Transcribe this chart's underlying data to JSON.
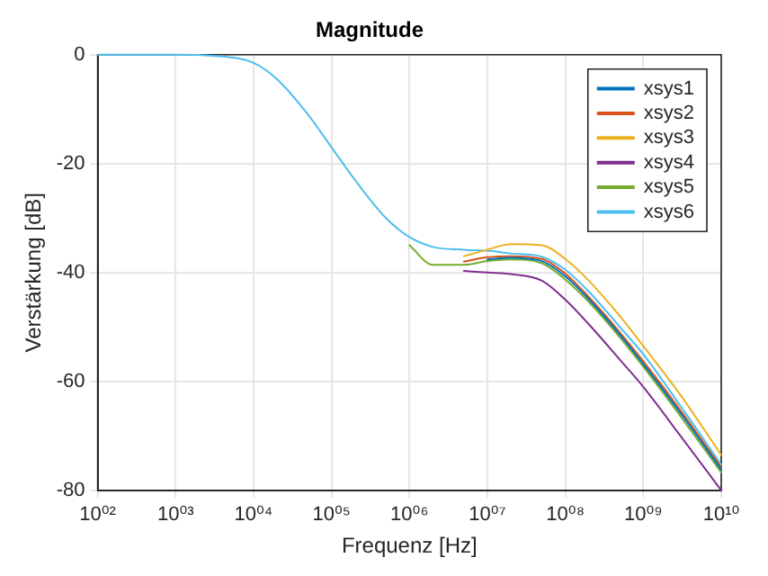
{
  "chart_data": {
    "type": "line",
    "title": "Magnitude",
    "xlabel": "Frequenz [Hz]",
    "ylabel": "Verstärkung [dB]",
    "log": "x",
    "grid": true,
    "legend": "top right",
    "marker": "none",
    "line_style": "solid",
    "xlim": [
      100,
      10000000000
    ],
    "ylim": [
      -80,
      0
    ],
    "xticks": [
      {
        "value": 100,
        "label": "10⁰²"
      },
      {
        "value": 1000,
        "label": "10⁰³"
      },
      {
        "value": 10000,
        "label": "10⁰⁴"
      },
      {
        "value": 100000,
        "label": "10⁰⁵"
      },
      {
        "value": 1000000,
        "label": "10⁰⁶"
      },
      {
        "value": 10000000,
        "label": "10⁰⁷"
      },
      {
        "value": 100000000,
        "label": "10⁰⁸"
      },
      {
        "value": 1000000000,
        "label": "10⁰⁹"
      },
      {
        "value": 10000000000,
        "label": "10¹⁰"
      }
    ],
    "yticks": [
      -80,
      -60,
      -40,
      -20,
      0
    ],
    "x": [
      100,
      1000,
      3000,
      10000,
      20000,
      50000,
      100000,
      200000,
      500000,
      1000000,
      2000000,
      5000000,
      10000000,
      20000000,
      50000000,
      100000000,
      200000000,
      500000000,
      1000000000,
      3000000000,
      10000000000
    ],
    "series": [
      {
        "name": "xsys1",
        "color": "#0072bd",
        "values": [
          null,
          null,
          null,
          null,
          null,
          null,
          null,
          null,
          null,
          null,
          null,
          null,
          -37.6,
          -37.3,
          -37.9,
          -40.7,
          -44.9,
          -51.4,
          -56.8,
          -65.8,
          -76.2
        ]
      },
      {
        "name": "xsys2",
        "color": "#d95319",
        "values": [
          null,
          null,
          null,
          null,
          null,
          null,
          null,
          null,
          null,
          null,
          null,
          -38,
          -37.2,
          -37,
          -37.5,
          -40.2,
          -44.5,
          -51,
          -56.3,
          -65.3,
          -75.8
        ]
      },
      {
        "name": "xsys3",
        "color": "#edb120",
        "values": [
          null,
          null,
          null,
          null,
          null,
          null,
          null,
          null,
          null,
          null,
          null,
          -37,
          -35.8,
          -34.8,
          -35,
          -37.5,
          -41.5,
          -48,
          -53.5,
          -62.5,
          -73.5
        ]
      },
      {
        "name": "xsys4",
        "color": "#7e2f8e",
        "values": [
          null,
          null,
          null,
          null,
          null,
          null,
          null,
          null,
          null,
          null,
          null,
          -39.7,
          -40,
          -40.3,
          -41.5,
          -45,
          -49.5,
          -56,
          -61,
          -70,
          -80
        ]
      },
      {
        "name": "xsys5",
        "color": "#77ac30",
        "values": [
          null,
          null,
          null,
          null,
          null,
          null,
          null,
          null,
          null,
          -35,
          -38.6,
          -38.6,
          -37.9,
          -37.6,
          -38.3,
          -41.3,
          -45.4,
          -51.9,
          -57.3,
          -66.4,
          -76.7
        ]
      },
      {
        "name": "xsys6",
        "color": "#4dbeee",
        "values": [
          0,
          0,
          -0.2,
          -1.5,
          -4.5,
          -11,
          -17,
          -23,
          -30,
          -33.5,
          -35.3,
          -35.8,
          -36,
          -36.5,
          -37.1,
          -39.5,
          -43.5,
          -50,
          -55,
          -64.5,
          -75.3
        ]
      }
    ]
  }
}
